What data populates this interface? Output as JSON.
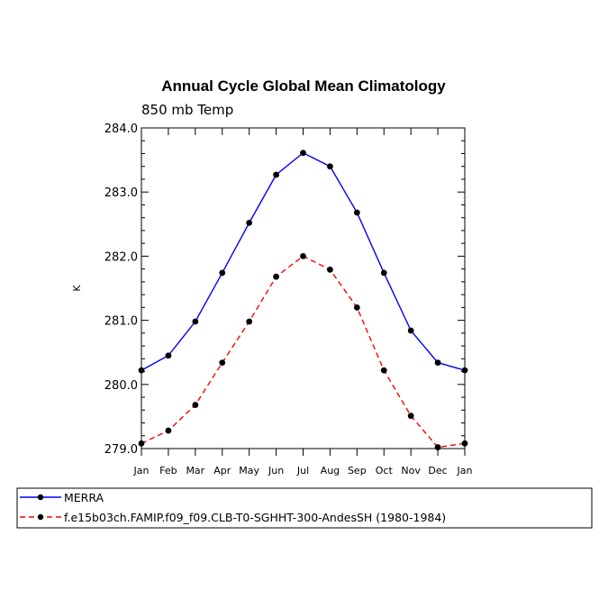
{
  "chart_data": {
    "type": "line",
    "title": "Annual Cycle Global Mean Climatology",
    "subtitle": "850 mb Temp",
    "ylabel": "K",
    "xlabel": "",
    "categories": [
      "Jan",
      "Feb",
      "Mar",
      "Apr",
      "May",
      "Jun",
      "Jul",
      "Aug",
      "Sep",
      "Oct",
      "Nov",
      "Dec",
      "Jan"
    ],
    "yticks": [
      "279.0",
      "280.0",
      "281.0",
      "282.0",
      "283.0",
      "284.0"
    ],
    "ylim": [
      279.0,
      284.0
    ],
    "grid": false,
    "legend_placement": "bottom",
    "series": [
      {
        "name": "MERRA",
        "color": "#0000ff",
        "line_style": "solid",
        "values": [
          280.22,
          280.45,
          280.98,
          281.74,
          282.52,
          283.27,
          283.61,
          283.4,
          282.68,
          281.74,
          280.84,
          280.34,
          280.22
        ]
      },
      {
        "name": "f.e15b03ch.FAMIP.f09_f09.CLB-T0-SGHHT-300-AndesSH (1980-1984)",
        "color": "#ff0000",
        "line_style": "dashed",
        "values": [
          279.08,
          279.28,
          279.68,
          280.34,
          280.98,
          281.68,
          282.0,
          281.79,
          281.2,
          280.22,
          279.51,
          279.02,
          279.08
        ]
      }
    ]
  }
}
